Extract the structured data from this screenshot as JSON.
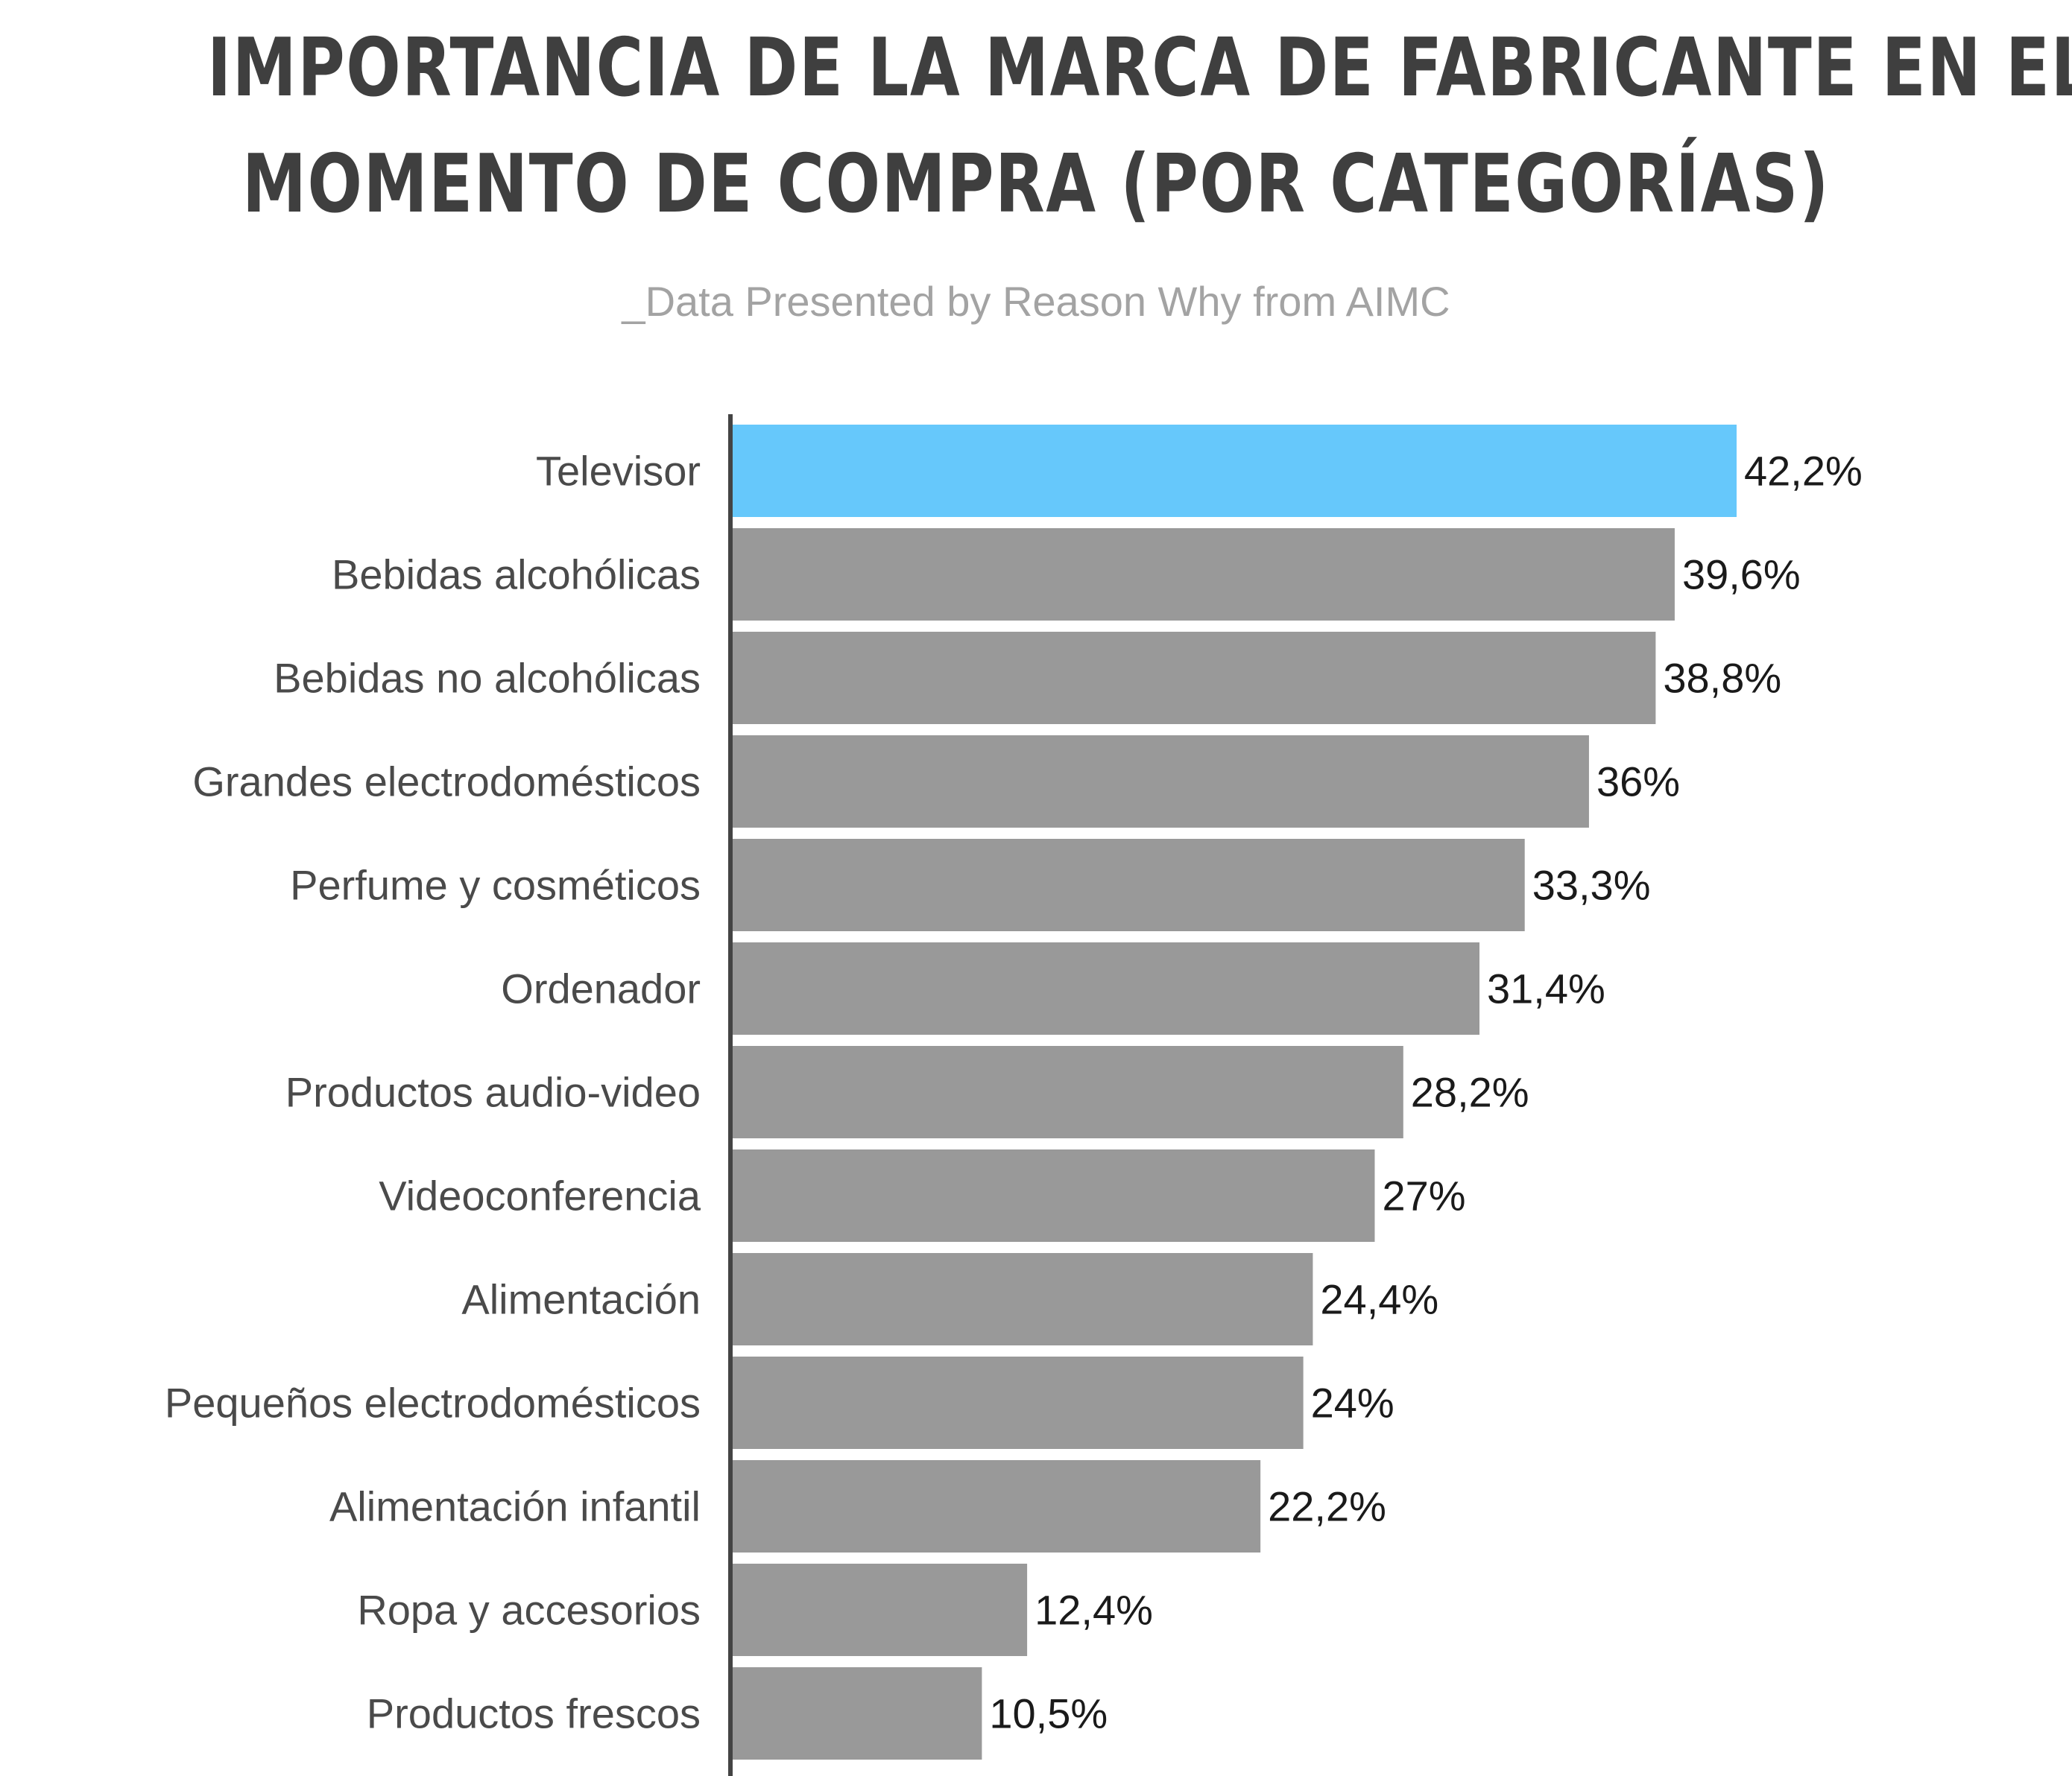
{
  "chart_data": {
    "type": "bar",
    "orientation": "horizontal",
    "title": "IMPORTANCIA DE LA MARCA DE FABRICANTE EN EL MOMENTO DE COMPRA (POR CATEGORÍAS)",
    "title_lines": [
      "IMPORTANCIA DE LA MARCA DE FABRICANTE EN EL",
      "MOMENTO DE COMPRA (POR CATEGORÍAS)"
    ],
    "subtitle": "_Data Presented by Reason Why from AIMC",
    "categories": [
      "Televisor",
      "Bebidas alcohólicas",
      "Bebidas no alcohólicas",
      "Grandes electrodomésticos",
      "Perfume y cosméticos",
      "Ordenador",
      "Productos audio-video",
      "Videoconferencia",
      "Alimentación",
      "Pequeños electrodomésticos",
      "Alimentación infantil",
      "Ropa y accesorios",
      "Productos frescos"
    ],
    "values": [
      42.2,
      39.6,
      38.8,
      36,
      33.3,
      31.4,
      28.2,
      27,
      24.4,
      24,
      22.2,
      12.4,
      10.5
    ],
    "value_labels": [
      "42,2%",
      "39,6%",
      "38,8%",
      "36%",
      "33,3%",
      "31,4%",
      "28,2%",
      "27%",
      "24,4%",
      "24%",
      "22,2%",
      "12,4%",
      "10,5%"
    ],
    "highlight_index": 0,
    "colors": {
      "highlight": "#66c8fb",
      "bar": "#999999",
      "axis": "#444444"
    },
    "xlim": [
      0,
      42.2
    ],
    "grid": false,
    "legend": "none"
  }
}
